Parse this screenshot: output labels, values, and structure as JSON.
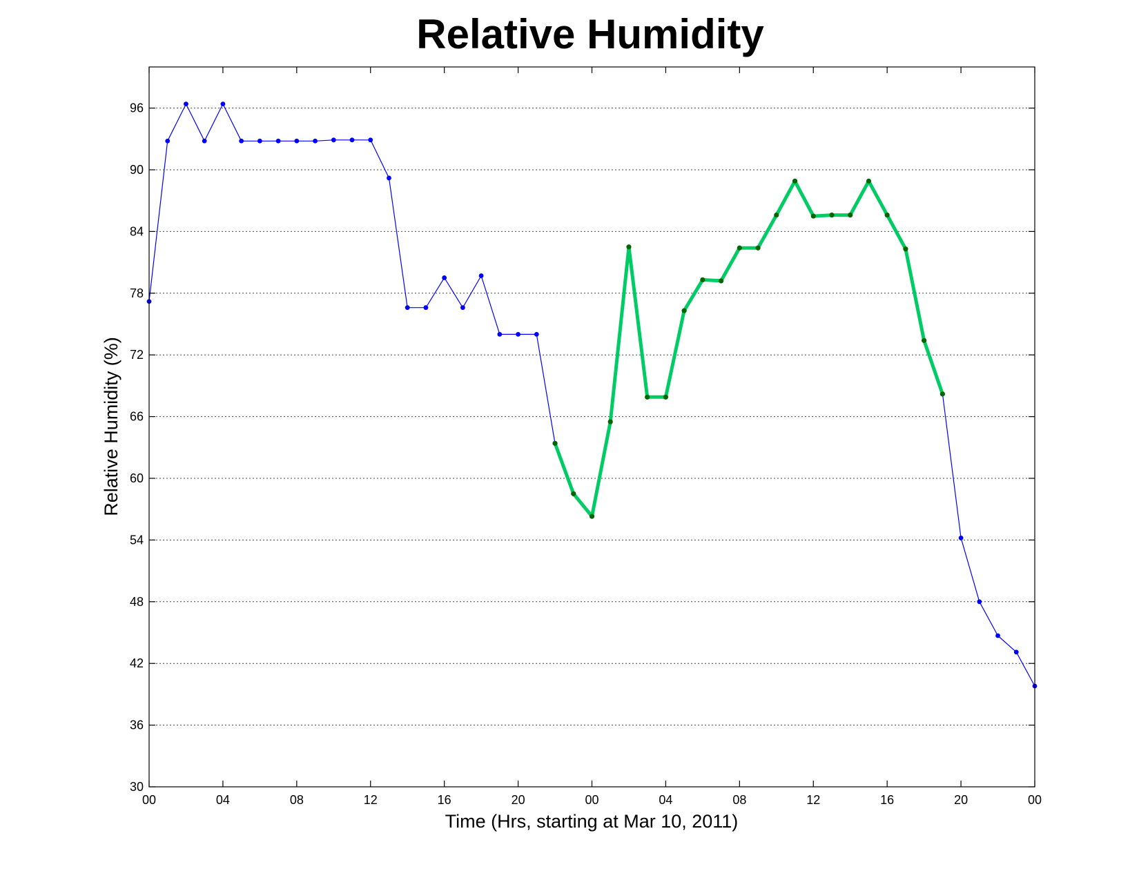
{
  "chart_data": {
    "type": "line",
    "title": "Relative Humidity",
    "xlabel": "Time (Hrs, starting at Mar 10, 2011)",
    "ylabel": "Relative Humidity (%)",
    "xlim": [
      0,
      48
    ],
    "ylim": [
      30,
      100
    ],
    "grid": "y-dotted",
    "xticks": [
      {
        "hour": 0,
        "label": "00"
      },
      {
        "hour": 4,
        "label": "04"
      },
      {
        "hour": 8,
        "label": "08"
      },
      {
        "hour": 12,
        "label": "12"
      },
      {
        "hour": 16,
        "label": "16"
      },
      {
        "hour": 20,
        "label": "20"
      },
      {
        "hour": 24,
        "label": "00"
      },
      {
        "hour": 28,
        "label": "04"
      },
      {
        "hour": 32,
        "label": "08"
      },
      {
        "hour": 36,
        "label": "12"
      },
      {
        "hour": 40,
        "label": "16"
      },
      {
        "hour": 44,
        "label": "20"
      },
      {
        "hour": 48,
        "label": "00"
      }
    ],
    "yticks": [
      30,
      36,
      42,
      48,
      54,
      60,
      66,
      72,
      78,
      84,
      90,
      96
    ],
    "series": [
      {
        "color": "#0000ff",
        "line_width": "thin",
        "x": [
          0,
          1,
          2,
          3,
          4,
          5,
          6,
          7,
          8,
          9,
          10,
          11,
          12,
          13,
          14,
          15,
          16,
          17,
          18,
          19,
          20,
          21,
          22,
          23,
          24,
          25,
          26,
          27,
          28,
          29,
          30,
          31,
          32,
          33,
          34,
          35,
          36,
          37,
          38,
          39,
          40,
          41,
          42,
          43,
          44,
          45,
          46,
          47,
          48
        ],
        "y": [
          77.2,
          92.8,
          96.4,
          92.8,
          96.4,
          92.8,
          92.8,
          92.8,
          92.8,
          92.8,
          92.9,
          92.9,
          92.9,
          89.2,
          76.6,
          76.6,
          79.5,
          76.6,
          79.7,
          74.0,
          74.0,
          74.0,
          63.4,
          58.5,
          56.3,
          65.5,
          82.5,
          67.9,
          67.9,
          76.3,
          79.3,
          79.2,
          82.4,
          82.4,
          85.6,
          88.9,
          85.5,
          85.6,
          85.6,
          88.9,
          85.6,
          82.3,
          73.4,
          68.2,
          54.2,
          48.0,
          44.7,
          43.1,
          39.8
        ]
      },
      {
        "color": "#00cc66",
        "marker_color": "#006600",
        "line_width": "thick",
        "x": [
          22,
          23,
          24,
          25,
          26,
          27,
          28,
          29,
          30,
          31,
          32,
          33,
          34,
          35,
          36,
          37,
          38,
          39,
          40,
          41,
          42,
          43
        ],
        "y": [
          63.4,
          58.5,
          56.3,
          65.5,
          82.5,
          67.9,
          67.9,
          76.3,
          79.3,
          79.2,
          82.4,
          82.4,
          85.6,
          88.9,
          85.5,
          85.6,
          85.6,
          88.9,
          85.6,
          82.3,
          73.4,
          68.2
        ]
      }
    ]
  }
}
